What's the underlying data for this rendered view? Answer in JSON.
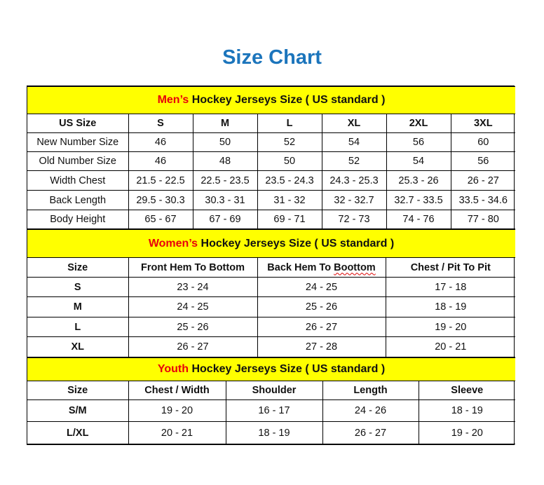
{
  "title": "Size Chart",
  "colors": {
    "title": "#1c75bc",
    "section_bg": "#ffff00",
    "accent": "#e8000b"
  },
  "sections": [
    {
      "accent": "Men’s",
      "rest": " Hockey Jerseys Size ( US standard )",
      "headers": [
        "US Size",
        "S",
        "M",
        "L",
        "XL",
        "2XL",
        "3XL"
      ],
      "rows": [
        [
          "New Number Size",
          "46",
          "50",
          "52",
          "54",
          "56",
          "60"
        ],
        [
          "Old Number Size",
          "46",
          "48",
          "50",
          "52",
          "54",
          "56"
        ],
        [
          "Width Chest",
          "21.5 - 22.5",
          "22.5 - 23.5",
          "23.5 - 24.3",
          "24.3 - 25.3",
          "25.3 - 26",
          "26 - 27"
        ],
        [
          "Back Length",
          "29.5 - 30.3",
          "30.3 - 31",
          "31 - 32",
          "32 - 32.7",
          "32.7 - 33.5",
          "33.5 - 34.6"
        ],
        [
          "Body Height",
          "65 - 67",
          "67 - 69",
          "69 - 71",
          "72 - 73",
          "74 - 76",
          "77 - 80"
        ]
      ]
    },
    {
      "accent": "Women’s",
      "rest": " Hockey Jerseys Size ( US standard )",
      "headers": [
        "Size",
        "Front Hem To Bottom",
        "Back Hem To Boottom",
        "Chest / Pit To Pit"
      ],
      "rows": [
        [
          "S",
          "23 - 24",
          "24 - 25",
          "17 - 18"
        ],
        [
          "M",
          "24 - 25",
          "25 - 26",
          "18 - 19"
        ],
        [
          "L",
          "25 - 26",
          "26 - 27",
          "19 - 20"
        ],
        [
          "XL",
          "26 - 27",
          "27 - 28",
          "20 - 21"
        ]
      ]
    },
    {
      "accent": "Youth",
      "rest": " Hockey Jerseys Size ( US standard )",
      "headers": [
        "Size",
        "Chest / Width",
        "Shoulder",
        "Length",
        "Sleeve"
      ],
      "rows": [
        [
          "S/M",
          "19 - 20",
          "16 - 17",
          "24 - 26",
          "18 - 19"
        ],
        [
          "L/XL",
          "20 - 21",
          "18 - 19",
          "26 - 27",
          "19 - 20"
        ]
      ]
    }
  ]
}
